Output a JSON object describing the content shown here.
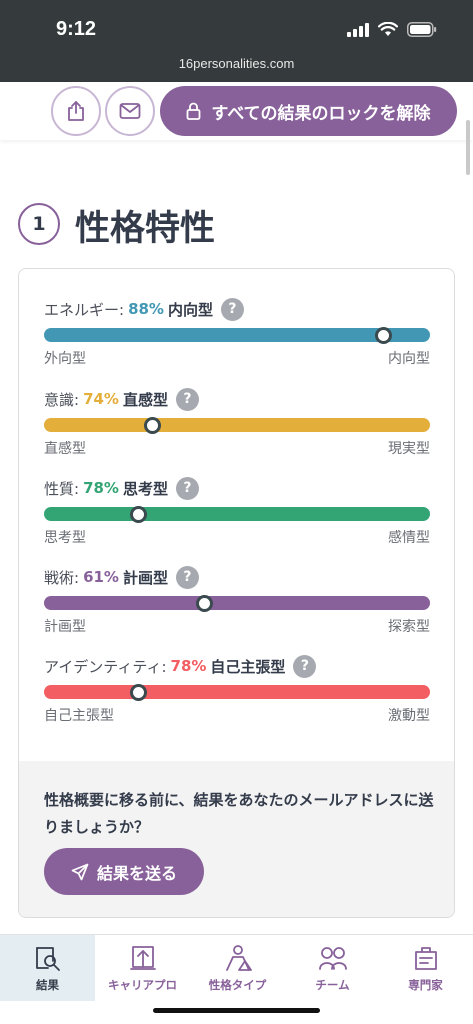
{
  "status_bar": {
    "time": "9:12",
    "url": "16personalities.com"
  },
  "toolbar": {
    "unlock_label": "すべての結果のロックを解除"
  },
  "section": {
    "number": "1",
    "title": "性格特性"
  },
  "traits": [
    {
      "label": "エネルギー:",
      "percent": "88%",
      "type": "内向型",
      "left": "外向型",
      "right": "内向型",
      "value": 0.88,
      "color": "#4298b4",
      "pct_color": "#4298b4"
    },
    {
      "label": "意識:",
      "percent": "74%",
      "type": "直感型",
      "left": "直感型",
      "right": "現実型",
      "value": 0.28,
      "color": "#e4ae3a",
      "pct_color": "#e4ae3a"
    },
    {
      "label": "性質:",
      "percent": "78%",
      "type": "思考型",
      "left": "思考型",
      "right": "感情型",
      "value": 0.245,
      "color": "#33a474",
      "pct_color": "#33a474"
    },
    {
      "label": "戦術:",
      "percent": "61%",
      "type": "計画型",
      "left": "計画型",
      "right": "探索型",
      "value": 0.415,
      "color": "#88619a",
      "pct_color": "#88619a"
    },
    {
      "label": "アイデンティティ:",
      "percent": "78%",
      "type": "自己主張型",
      "left": "自己主張型",
      "right": "激動型",
      "value": 0.245,
      "color": "#f25e62",
      "pct_color": "#f25e62"
    }
  ],
  "help_glyph": "?",
  "email_prompt": {
    "text": "性格概要に移る前に、結果をあなたのメールアドレスに送りましょうか？",
    "button_label": "結果を送る"
  },
  "nav": [
    {
      "label": "結果",
      "icon": "results-icon"
    },
    {
      "label": "キャリアプロ",
      "icon": "career-icon"
    },
    {
      "label": "性格タイプ",
      "icon": "personality-types-icon"
    },
    {
      "label": "チーム",
      "icon": "team-icon"
    },
    {
      "label": "専門家",
      "icon": "professional-icon"
    }
  ],
  "colors": {
    "accent": "#88619a",
    "status_bar": "#353a3c",
    "text": "#343c4b"
  }
}
